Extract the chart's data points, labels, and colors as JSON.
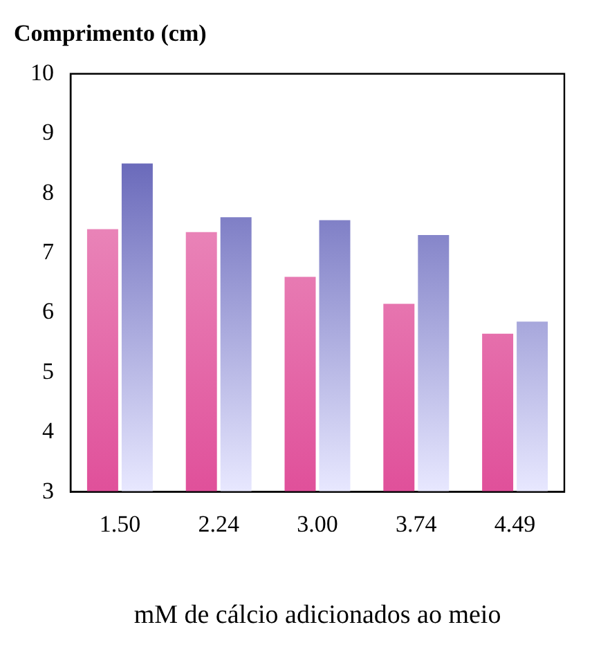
{
  "chart_data": {
    "type": "bar",
    "ylabel": "Comprimento (cm)",
    "xlabel": "mM de cálcio adicionados ao meio",
    "categories": [
      "1.50",
      "2.24",
      "3.00",
      "3.74",
      "4.49"
    ],
    "series": [
      {
        "color": "#e0509a",
        "values": [
          7.4,
          7.35,
          6.6,
          6.15,
          5.65
        ]
      },
      {
        "color": "#4848a8",
        "values": [
          8.5,
          7.6,
          7.55,
          7.3,
          5.85
        ]
      }
    ],
    "ylim": [
      3,
      10
    ],
    "yticks": [
      3,
      4,
      5,
      6,
      7,
      8,
      9,
      10
    ],
    "grid": false,
    "legend": false
  }
}
